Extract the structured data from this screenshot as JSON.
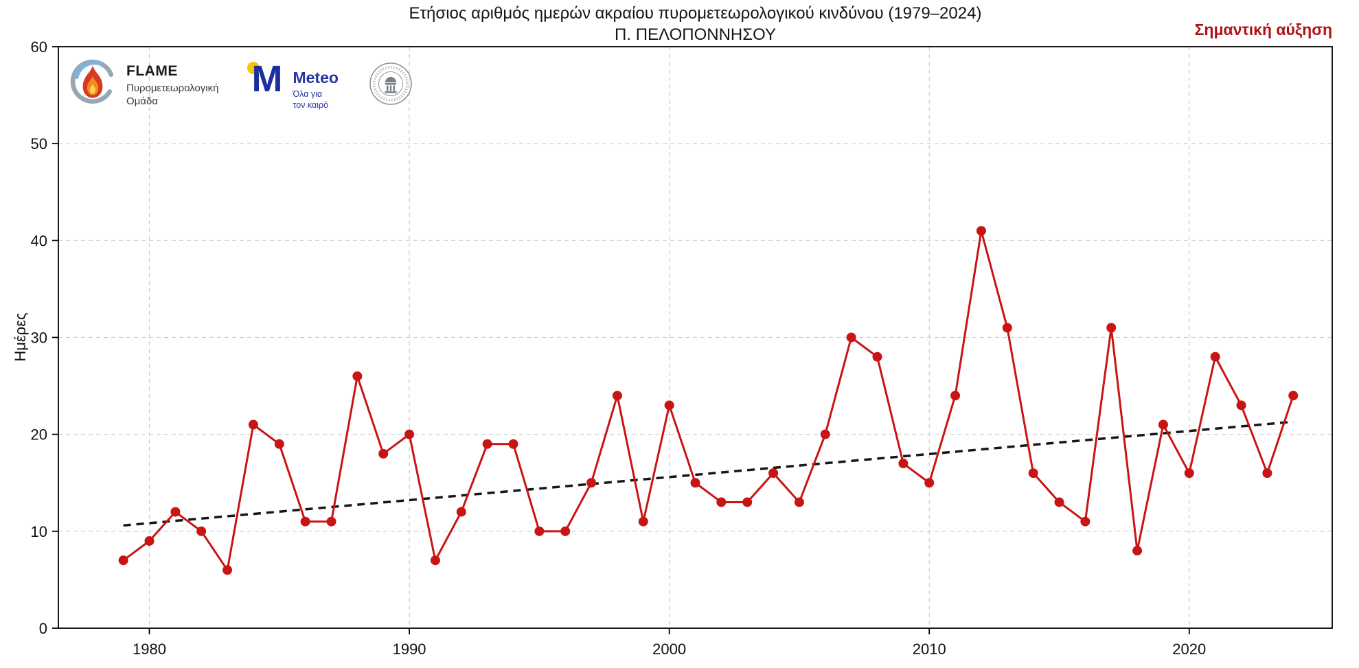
{
  "header": {
    "title_line1": "Ετήσιος αριθμός ημερών ακραίου πυρομετεωρολογικού κινδύνου (1979–2024)",
    "title_line2": "Π. ΠΕΛΟΠΟΝΝΗΣΟΥ",
    "trend_label": "Σημαντική αύξηση",
    "trend_label_color": "#b01116"
  },
  "logos": {
    "flame": {
      "icon": "flame-swirl-icon",
      "title": "FLAME",
      "subtitle_line1": "Πυρομετεωρολογική",
      "subtitle_line2": "Ομάδα"
    },
    "meteo": {
      "icon": "meteo-m-sun-icon",
      "title": "Meteo",
      "subtitle_line1": "Όλα για",
      "subtitle_line2": "τον καιρό"
    },
    "observatory": {
      "icon": "national-observatory-of-athens-seal"
    }
  },
  "chart_data": {
    "type": "line",
    "title": "Ετήσιος αριθμός ημερών ακραίου πυρομετεωρολογικού κινδύνου (1979–2024) — Π. ΠΕΛΟΠΟΝΝΗΣΟΥ",
    "xlabel": "",
    "ylabel": "Ημέρες",
    "x": [
      1979,
      1980,
      1981,
      1982,
      1983,
      1984,
      1985,
      1986,
      1987,
      1988,
      1989,
      1990,
      1991,
      1992,
      1993,
      1994,
      1995,
      1996,
      1997,
      1998,
      1999,
      2000,
      2001,
      2002,
      2003,
      2004,
      2005,
      2006,
      2007,
      2008,
      2009,
      2010,
      2011,
      2012,
      2013,
      2014,
      2015,
      2016,
      2017,
      2018,
      2019,
      2020,
      2021,
      2022,
      2023,
      2024
    ],
    "values": [
      7,
      9,
      12,
      10,
      6,
      21,
      19,
      11,
      11,
      26,
      18,
      20,
      7,
      12,
      19,
      19,
      10,
      10,
      15,
      24,
      11,
      23,
      15,
      13,
      13,
      16,
      13,
      20,
      30,
      28,
      17,
      15,
      24,
      41,
      31,
      16,
      13,
      11,
      31,
      8,
      21,
      16,
      28,
      23,
      16,
      24
    ],
    "ylim": [
      0,
      60
    ],
    "xlim": [
      1976.5,
      2025.5
    ],
    "yticks": [
      0,
      10,
      20,
      30,
      40,
      50,
      60
    ],
    "xticks": [
      1980,
      1990,
      2000,
      2010,
      2020
    ],
    "grid": true,
    "legend_position": "none",
    "line_color": "#c91414",
    "marker_color": "#c91414",
    "grid_color": "#cccccc",
    "trend": {
      "style": "dashed",
      "color": "#161616",
      "x": [
        1979,
        2024
      ],
      "y": [
        10.6,
        21.3
      ]
    }
  }
}
